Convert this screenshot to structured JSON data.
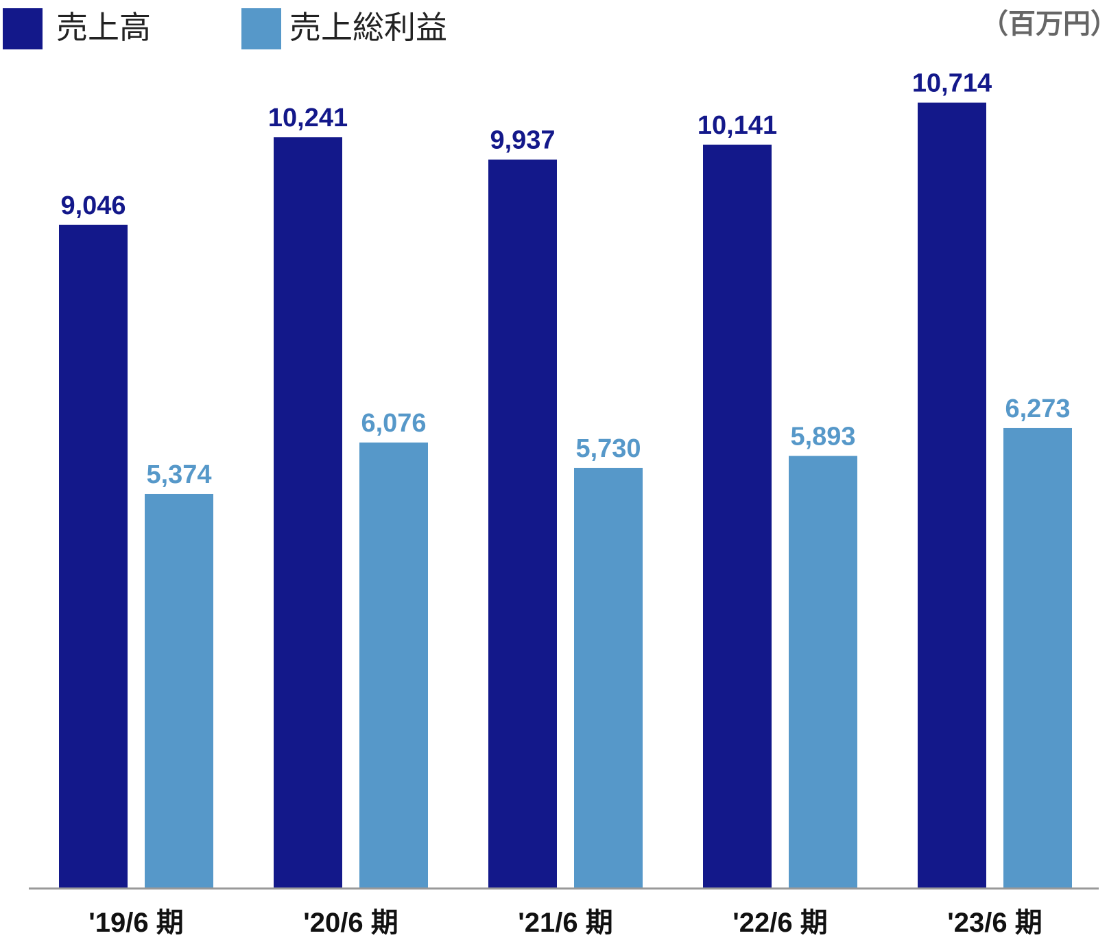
{
  "unit_label": "（百万円）",
  "colors": {
    "sales": "#13188a",
    "gross_profit": "#5698c9",
    "axis": "#999999"
  },
  "chart_data": {
    "type": "bar",
    "title": "",
    "xlabel": "",
    "ylabel": "",
    "categories": [
      "'19/6 期",
      "'20/6 期",
      "'21/6 期",
      "'22/6 期",
      "'23/6 期"
    ],
    "ylim": [
      0,
      11300
    ],
    "grid": false,
    "legend_position": "top-left",
    "series": [
      {
        "name": "売上高",
        "values": [
          9046,
          10241,
          9937,
          10141,
          10714
        ],
        "labels": [
          "9,046",
          "10,241",
          "9,937",
          "10,141",
          "10,714"
        ]
      },
      {
        "name": "売上総利益",
        "values": [
          5374,
          6076,
          5730,
          5893,
          6273
        ],
        "labels": [
          "5,374",
          "6,076",
          "5,730",
          "5,893",
          "6,273"
        ]
      }
    ]
  }
}
